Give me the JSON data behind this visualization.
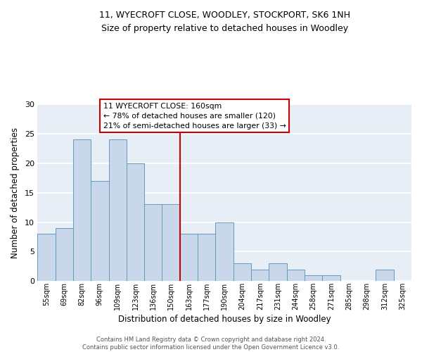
{
  "title_line1": "11, WYECROFT CLOSE, WOODLEY, STOCKPORT, SK6 1NH",
  "title_line2": "Size of property relative to detached houses in Woodley",
  "xlabel": "Distribution of detached houses by size in Woodley",
  "ylabel": "Number of detached properties",
  "bar_labels": [
    "55sqm",
    "69sqm",
    "82sqm",
    "96sqm",
    "109sqm",
    "123sqm",
    "136sqm",
    "150sqm",
    "163sqm",
    "177sqm",
    "190sqm",
    "204sqm",
    "217sqm",
    "231sqm",
    "244sqm",
    "258sqm",
    "271sqm",
    "285sqm",
    "298sqm",
    "312sqm",
    "325sqm"
  ],
  "bar_values": [
    8,
    9,
    24,
    17,
    24,
    20,
    13,
    13,
    8,
    8,
    10,
    3,
    2,
    3,
    2,
    1,
    1,
    0,
    0,
    2,
    0
  ],
  "bar_color": "#c8d8ea",
  "bar_edgecolor": "#6699bb",
  "ylim": [
    0,
    30
  ],
  "yticks": [
    0,
    5,
    10,
    15,
    20,
    25,
    30
  ],
  "vline_index": 8,
  "vline_color": "#cc0000",
  "annotation_title": "11 WYECROFT CLOSE: 160sqm",
  "annotation_line1": "← 78% of detached houses are smaller (120)",
  "annotation_line2": "21% of semi-detached houses are larger (33) →",
  "annotation_box_color": "#ffffff",
  "annotation_box_edgecolor": "#cc0000",
  "footer_line1": "Contains HM Land Registry data © Crown copyright and database right 2024.",
  "footer_line2": "Contains public sector information licensed under the Open Government Licence v3.0.",
  "background_color": "#ffffff",
  "plot_background_color": "#e8eef5",
  "grid_color": "#ffffff"
}
